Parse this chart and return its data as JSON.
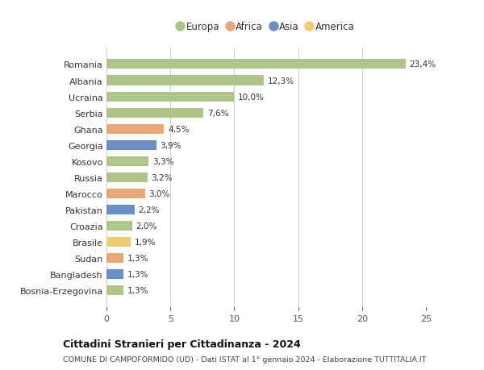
{
  "countries": [
    "Romania",
    "Albania",
    "Ucraina",
    "Serbia",
    "Ghana",
    "Georgia",
    "Kosovo",
    "Russia",
    "Marocco",
    "Pakistan",
    "Croazia",
    "Brasile",
    "Sudan",
    "Bangladesh",
    "Bosnia-Erzegovina"
  ],
  "values": [
    23.4,
    12.3,
    10.0,
    7.6,
    4.5,
    3.9,
    3.3,
    3.2,
    3.0,
    2.2,
    2.0,
    1.9,
    1.3,
    1.3,
    1.3
  ],
  "labels": [
    "23,4%",
    "12,3%",
    "10,0%",
    "7,6%",
    "4,5%",
    "3,9%",
    "3,3%",
    "3,2%",
    "3,0%",
    "2,2%",
    "2,0%",
    "1,9%",
    "1,3%",
    "1,3%",
    "1,3%"
  ],
  "continents": [
    "Europa",
    "Europa",
    "Europa",
    "Europa",
    "Africa",
    "Asia",
    "Europa",
    "Europa",
    "Africa",
    "Asia",
    "Europa",
    "America",
    "Africa",
    "Asia",
    "Europa"
  ],
  "continent_colors": {
    "Europa": "#aec48b",
    "Africa": "#e8a87c",
    "Asia": "#6b8ec4",
    "America": "#f0cc6e"
  },
  "legend_order": [
    "Europa",
    "Africa",
    "Asia",
    "America"
  ],
  "title": "Cittadini Stranieri per Cittadinanza - 2024",
  "subtitle": "COMUNE DI CAMPOFORMIDO (UD) - Dati ISTAT al 1° gennaio 2024 - Elaborazione TUTTITALIA.IT",
  "xlim": [
    0,
    25
  ],
  "xticks": [
    0,
    5,
    10,
    15,
    20,
    25
  ],
  "bar_height": 0.6,
  "background_color": "#ffffff",
  "grid_color": "#cccccc"
}
